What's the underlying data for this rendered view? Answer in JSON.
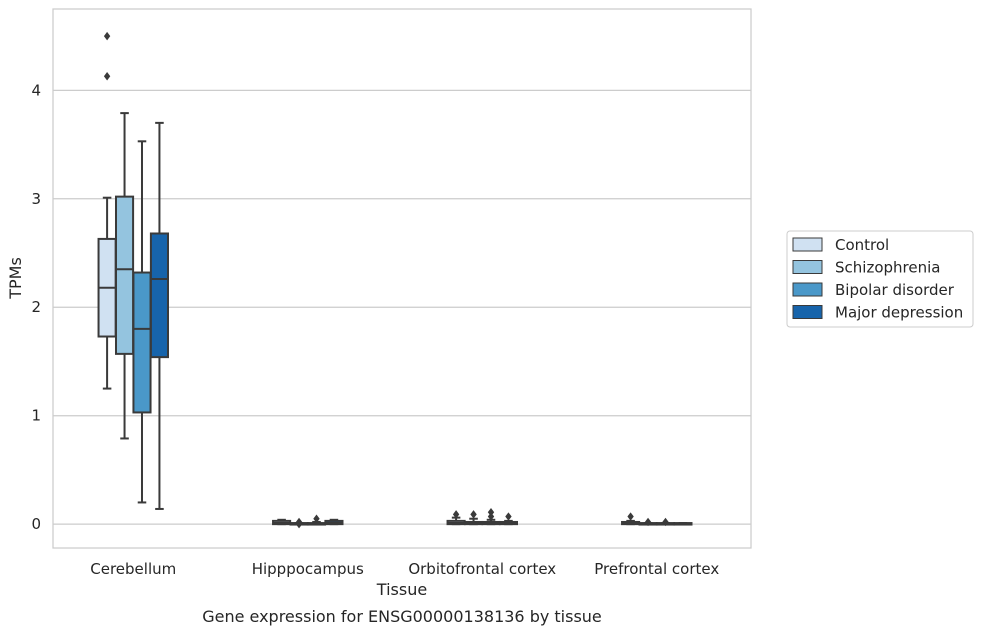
{
  "chart_data": {
    "type": "box",
    "caption": "Gene expression for ENSG00000138136 by tissue",
    "xlabel": "Tissue",
    "ylabel": "TPMs",
    "ylim": [
      -0.22,
      4.75
    ],
    "yticks": [
      0,
      1,
      2,
      3,
      4
    ],
    "grid": "horizontal",
    "legend_position": "right",
    "categories": [
      "Cerebellum",
      "Hipppocampus",
      "Orbitofrontal cortex",
      "Prefrontal cortex"
    ],
    "series": [
      {
        "name": "Control",
        "color": "#d0e1f2",
        "boxes": [
          {
            "min": 1.25,
            "q1": 1.73,
            "median": 2.18,
            "q3": 2.63,
            "max": 3.01,
            "outliers": [
              4.5,
              4.13
            ]
          },
          {
            "min": 0.0,
            "q1": 0.0,
            "median": 0.01,
            "q3": 0.03,
            "max": 0.04,
            "outliers": []
          },
          {
            "min": 0.0,
            "q1": 0.0,
            "median": 0.01,
            "q3": 0.03,
            "max": 0.06,
            "outliers": [
              0.09
            ]
          },
          {
            "min": 0.0,
            "q1": 0.0,
            "median": 0.01,
            "q3": 0.02,
            "max": 0.03,
            "outliers": [
              0.07
            ]
          }
        ]
      },
      {
        "name": "Schizophrenia",
        "color": "#94c4df",
        "boxes": [
          {
            "min": 0.79,
            "q1": 1.57,
            "median": 2.35,
            "q3": 3.02,
            "max": 3.79,
            "outliers": []
          },
          {
            "min": 0.0,
            "q1": 0.0,
            "median": 0.0,
            "q3": 0.01,
            "max": 0.01,
            "outliers": [
              0.02,
              0.0
            ]
          },
          {
            "min": 0.0,
            "q1": 0.0,
            "median": 0.01,
            "q3": 0.02,
            "max": 0.05,
            "outliers": [
              0.09
            ]
          },
          {
            "min": 0.0,
            "q1": 0.0,
            "median": 0.0,
            "q3": 0.01,
            "max": 0.01,
            "outliers": [
              0.02
            ]
          }
        ]
      },
      {
        "name": "Bipolar disorder",
        "color": "#4a98c9",
        "boxes": [
          {
            "min": 0.2,
            "q1": 1.03,
            "median": 1.8,
            "q3": 2.32,
            "max": 3.53,
            "outliers": []
          },
          {
            "min": 0.0,
            "q1": 0.0,
            "median": 0.0,
            "q3": 0.01,
            "max": 0.02,
            "outliers": [
              0.05
            ]
          },
          {
            "min": 0.0,
            "q1": 0.0,
            "median": 0.01,
            "q3": 0.02,
            "max": 0.04,
            "outliers": [
              0.11,
              0.07
            ]
          },
          {
            "min": 0.0,
            "q1": 0.0,
            "median": 0.0,
            "q3": 0.01,
            "max": 0.01,
            "outliers": [
              0.02
            ]
          }
        ]
      },
      {
        "name": "Major depression",
        "color": "#1764ab",
        "boxes": [
          {
            "min": 0.14,
            "q1": 1.54,
            "median": 2.26,
            "q3": 2.68,
            "max": 3.7,
            "outliers": []
          },
          {
            "min": 0.0,
            "q1": 0.0,
            "median": 0.01,
            "q3": 0.03,
            "max": 0.04,
            "outliers": []
          },
          {
            "min": 0.0,
            "q1": 0.0,
            "median": 0.01,
            "q3": 0.02,
            "max": 0.03,
            "outliers": [
              0.07
            ]
          },
          {
            "min": 0.0,
            "q1": 0.0,
            "median": 0.0,
            "q3": 0.01,
            "max": 0.01,
            "outliers": []
          }
        ]
      }
    ]
  }
}
